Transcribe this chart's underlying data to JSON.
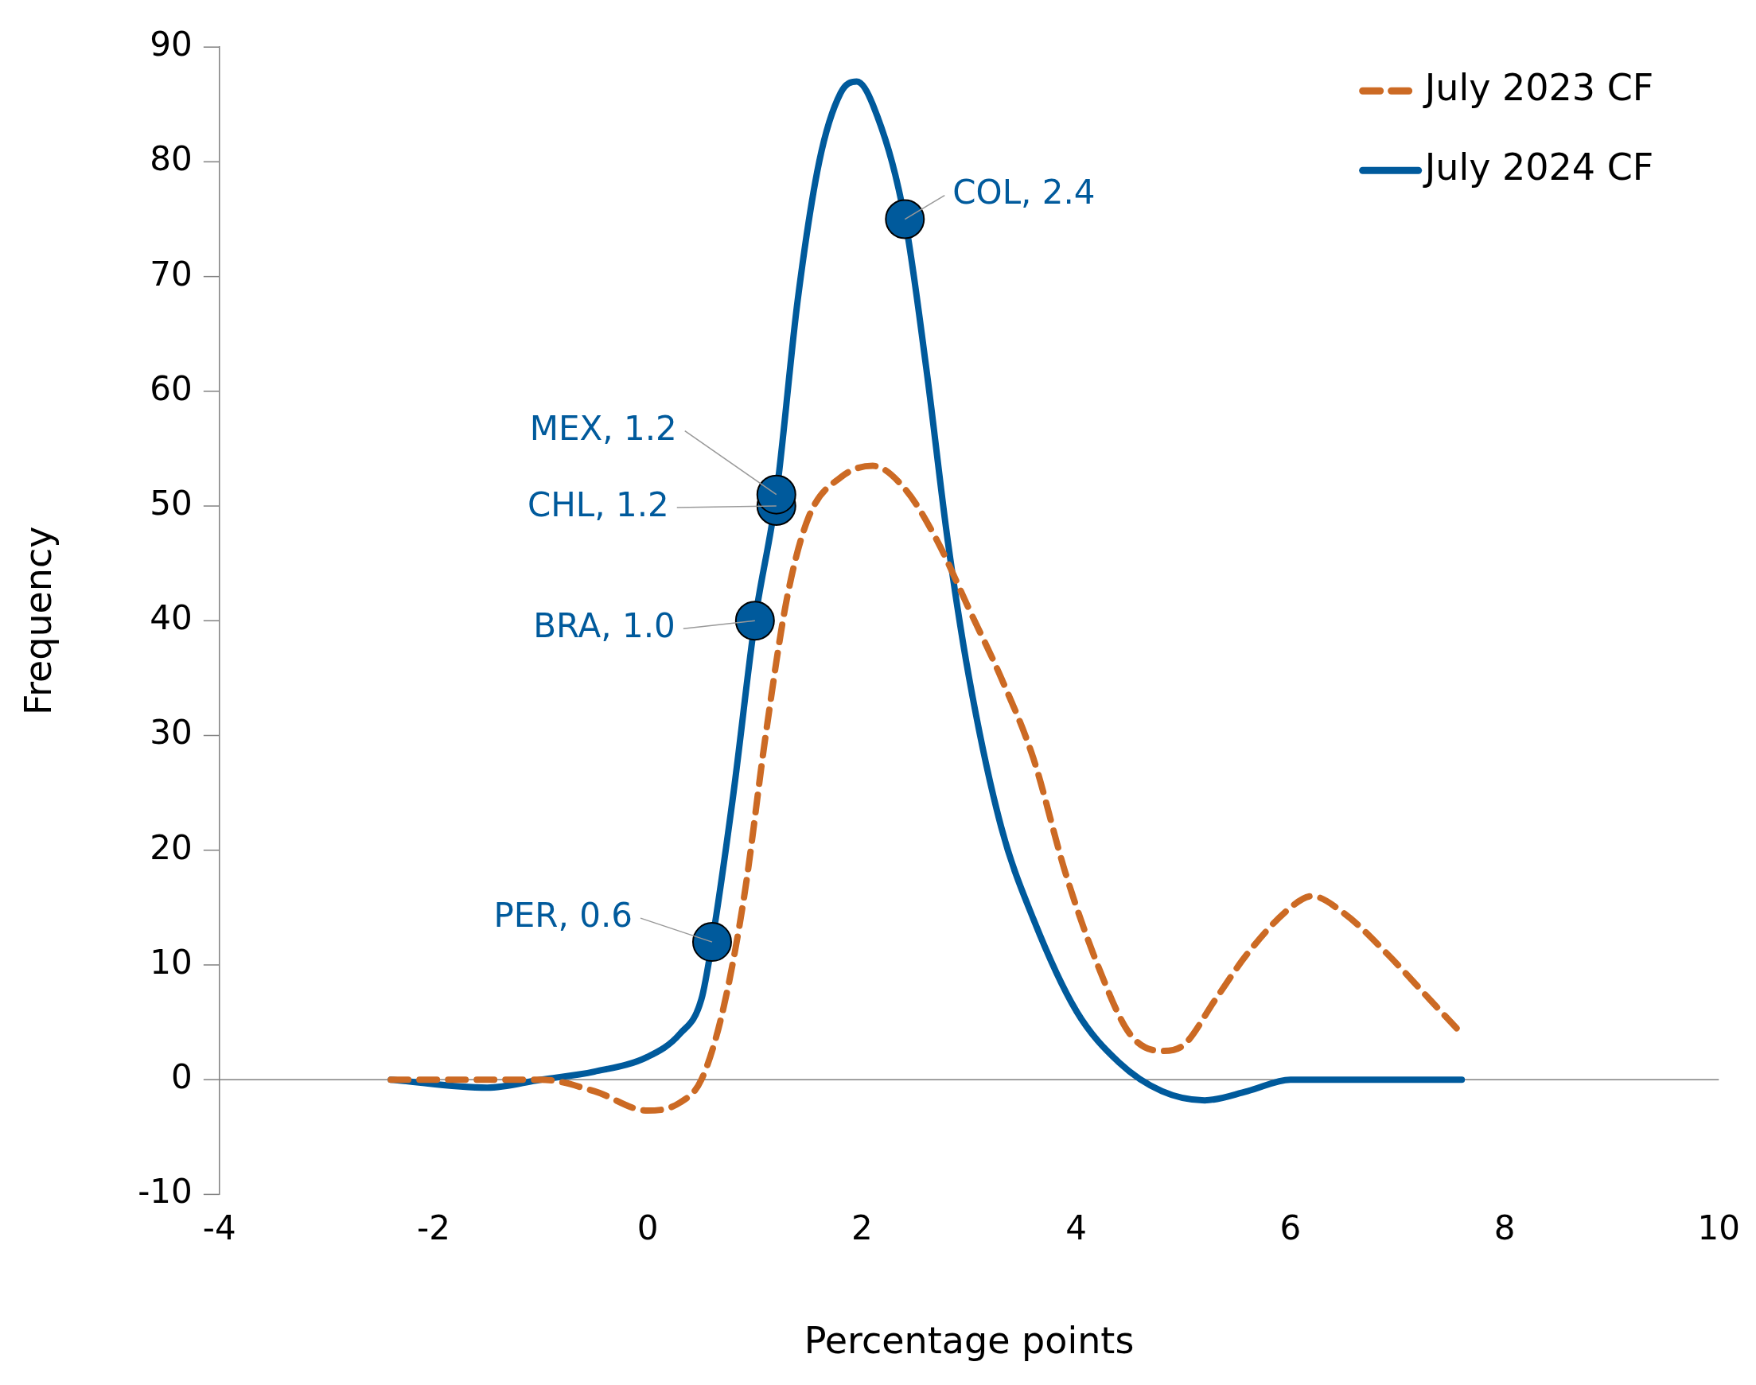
{
  "chart_data": {
    "type": "line",
    "xlabel": "Percentage points",
    "ylabel": "Frequency",
    "xlim": [
      -4,
      10
    ],
    "xticks": [
      -4,
      -2,
      0,
      2,
      4,
      6,
      8,
      10
    ],
    "ylim": [
      -10,
      90
    ],
    "yticks": [
      -10,
      0,
      10,
      20,
      30,
      40,
      50,
      60,
      70,
      80,
      90
    ],
    "grid": false,
    "legend": "top right",
    "ref_lines": [
      {
        "axis": "y",
        "value": 0,
        "color": "#808080",
        "line_style": "solid"
      }
    ],
    "series": [
      {
        "name": "July 2023 CF",
        "color": "#cc6a24",
        "line_style": "dashed",
        "marker": "none",
        "x": [
          -2.4,
          -1,
          -0.5,
          0,
          0.3,
          0.5,
          0.7,
          0.9,
          1.1,
          1.3,
          1.5,
          1.8,
          2.1,
          2.4,
          2.7,
          3.0,
          3.3,
          3.6,
          3.9,
          4.2,
          4.5,
          4.8,
          5.0,
          5.3,
          5.6,
          6.0,
          6.2,
          6.5,
          6.9,
          7.3,
          7.6
        ],
        "values": [
          0,
          0,
          -1,
          -2.7,
          -2,
          0,
          6,
          16,
          30,
          42,
          49,
          52.5,
          53.5,
          51.5,
          47,
          41,
          35,
          28,
          18,
          10,
          4,
          2.5,
          3,
          7,
          11,
          15,
          16,
          14.5,
          11,
          7,
          4
        ]
      },
      {
        "name": "July 2024 CF",
        "color": "#005a9c",
        "line_style": "solid",
        "marker": "none",
        "x": [
          -2.4,
          -1.5,
          -1,
          -0.5,
          0,
          0.3,
          0.5,
          0.6,
          0.8,
          1.0,
          1.2,
          1.4,
          1.6,
          1.8,
          1.95,
          2.1,
          2.4,
          2.6,
          2.8,
          3.0,
          3.3,
          3.6,
          4.0,
          4.4,
          4.8,
          5.2,
          5.6,
          6.0,
          7.6
        ],
        "values": [
          0,
          -0.7,
          0,
          0.7,
          2,
          4,
          7,
          12,
          25,
          40,
          51,
          68,
          80,
          86,
          87,
          85,
          75,
          62,
          47,
          35,
          22,
          14,
          6,
          1.5,
          -1,
          -1.8,
          -1,
          0,
          0
        ]
      },
      {
        "type": "scatter",
        "color": "#005a9c",
        "marker": "circle",
        "x": [
          0.6,
          1.0,
          1.2,
          1.2,
          2.4
        ],
        "values": [
          12,
          40,
          50,
          51,
          75
        ]
      }
    ],
    "annotations": [
      {
        "text": "PER, 0.6",
        "x": 0.6,
        "y": 12
      },
      {
        "text": "BRA, 1.0",
        "x": 1.0,
        "y": 40
      },
      {
        "text": "CHL, 1.2",
        "x": 1.2,
        "y": 50
      },
      {
        "text": "MEX, 1.2",
        "x": 1.2,
        "y": 51
      },
      {
        "text": "COL, 2.4",
        "x": 2.4,
        "y": 75
      }
    ]
  }
}
